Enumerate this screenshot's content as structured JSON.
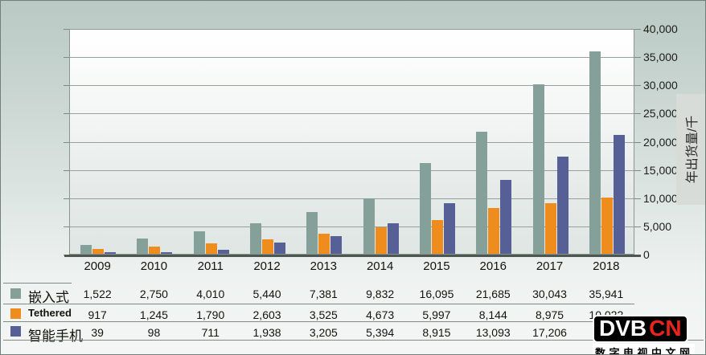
{
  "chart_data": {
    "type": "bar",
    "title": "",
    "xlabel": "",
    "ylabel": "年出货量/千",
    "ylim": [
      0,
      40000
    ],
    "ytick_step": 5000,
    "ytick_labels": [
      "40,000",
      "35,000",
      "30,000",
      "25,000",
      "20,000",
      "15,000",
      "10,000",
      "5,000",
      "0"
    ],
    "categories": [
      "2009",
      "2010",
      "2011",
      "2012",
      "2013",
      "2014",
      "2015",
      "2016",
      "2017",
      "2018"
    ],
    "grid": true,
    "legend_position": "table-left",
    "series": [
      {
        "name": "嵌入式",
        "color": "#84a099",
        "values": [
          1522,
          2750,
          4010,
          5440,
          7381,
          9832,
          16095,
          21685,
          30043,
          35941
        ],
        "display": [
          "1,522",
          "2,750",
          "4,010",
          "5,440",
          "7,381",
          "9,832",
          "16,095",
          "21,685",
          "30,043",
          "35,941"
        ]
      },
      {
        "name": "Tethered",
        "color": "#ee8c1e",
        "values": [
          917,
          1245,
          1790,
          2603,
          3525,
          4673,
          5997,
          8144,
          8975,
          10022
        ],
        "display": [
          "917",
          "1,245",
          "1,790",
          "2,603",
          "3,525",
          "4,673",
          "5,997",
          "8,144",
          "8,975",
          "10,022"
        ]
      },
      {
        "name": "智能手机",
        "color": "#575f97",
        "values": [
          39,
          98,
          711,
          1938,
          3205,
          5394,
          8915,
          13093,
          17206,
          21000
        ],
        "display": [
          "39",
          "98",
          "711",
          "1,938",
          "3,205",
          "5,394",
          "8,915",
          "13,093",
          "17,206",
          ""
        ]
      }
    ]
  },
  "watermark": {
    "logo_text_white": "DVB",
    "logo_text_red": "CN",
    "caption": "数字电视中文网"
  }
}
